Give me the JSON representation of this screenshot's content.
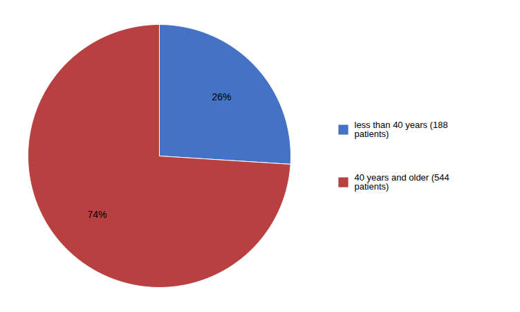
{
  "chart_data": {
    "type": "pie",
    "categories": [
      "less than 40 years (188\npatients)",
      "40 years and older (544\npatients)"
    ],
    "values": [
      26,
      74
    ],
    "value_labels": [
      "26%",
      "74%"
    ],
    "colors": [
      "#4472c4",
      "#b84040"
    ],
    "data_labels": true,
    "legend": "right"
  }
}
